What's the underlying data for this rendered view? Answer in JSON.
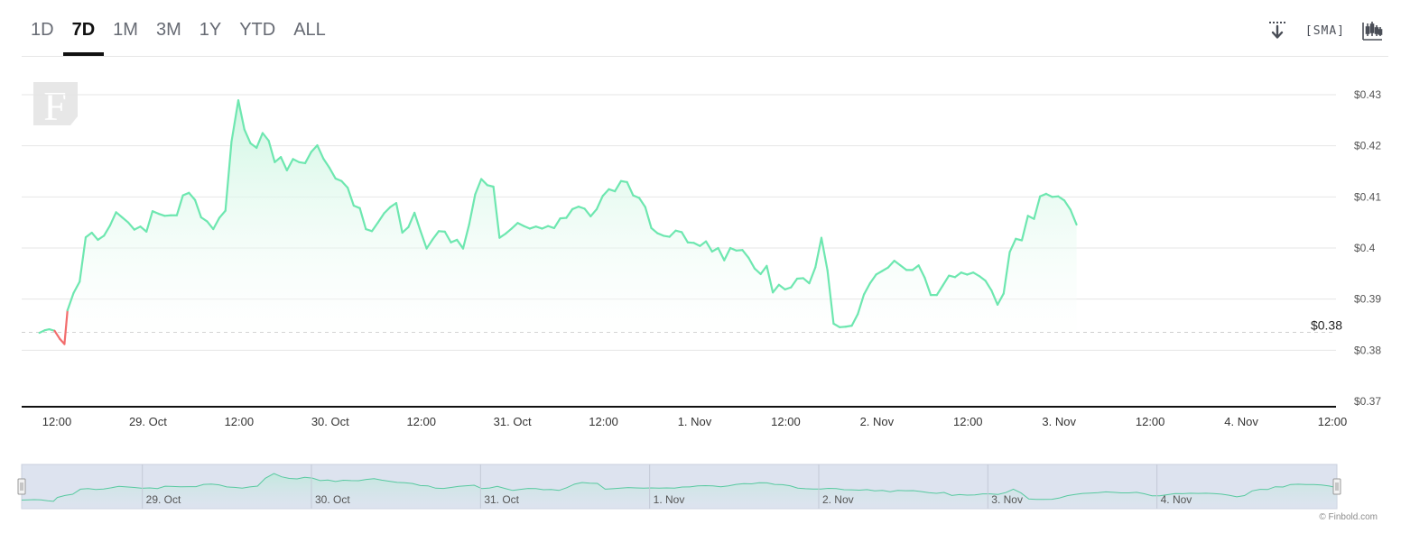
{
  "tabs": [
    {
      "label": "1D",
      "active": false
    },
    {
      "label": "7D",
      "active": true
    },
    {
      "label": "1M",
      "active": false
    },
    {
      "label": "3M",
      "active": false
    },
    {
      "label": "1Y",
      "active": false
    },
    {
      "label": "YTD",
      "active": false
    },
    {
      "label": "ALL",
      "active": false
    }
  ],
  "toolbar": {
    "download_icon": "download-icon",
    "sma_label": "SMA",
    "candlestick_icon": "candlestick-icon"
  },
  "logo": {
    "letter": "F"
  },
  "credit": "© Finbold.com",
  "colors": {
    "line": "#6ee7b0",
    "fill_top": "#c9f5df",
    "negative": "#f26d6d",
    "navigator_bg": "#dde3ef",
    "grid": "#e6e6e6"
  },
  "chart_data": {
    "type": "line",
    "title": "",
    "xlabel": "",
    "ylabel": "",
    "ylim": [
      0.37,
      0.43
    ],
    "y_ticks": [
      "$0.43",
      "$0.42",
      "$0.41",
      "$0.4",
      "$0.39",
      "$0.38",
      "$0.37"
    ],
    "y_tick_values": [
      0.43,
      0.42,
      0.41,
      0.4,
      0.39,
      0.38,
      0.37
    ],
    "xlim": [
      0,
      168
    ],
    "x_ticks": [
      {
        "label": "12:00",
        "t": 0
      },
      {
        "label": "29. Oct",
        "t": 12
      },
      {
        "label": "12:00",
        "t": 24
      },
      {
        "label": "30. Oct",
        "t": 36
      },
      {
        "label": "12:00",
        "t": 48
      },
      {
        "label": "31. Oct",
        "t": 60
      },
      {
        "label": "12:00",
        "t": 72
      },
      {
        "label": "1. Nov",
        "t": 84
      },
      {
        "label": "12:00",
        "t": 96
      },
      {
        "label": "2. Nov",
        "t": 108
      },
      {
        "label": "12:00",
        "t": 120
      },
      {
        "label": "3. Nov",
        "t": 132
      },
      {
        "label": "12:00",
        "t": 144
      },
      {
        "label": "4. Nov",
        "t": 156
      },
      {
        "label": "12:00",
        "t": 168
      }
    ],
    "reference_line": {
      "value": 0.3835,
      "label": "$0.38"
    },
    "navigator_labels": [
      {
        "label": "29. Oct",
        "t": 12
      },
      {
        "label": "30. Oct",
        "t": 36
      },
      {
        "label": "31. Oct",
        "t": 60
      },
      {
        "label": "1. Nov",
        "t": 84
      },
      {
        "label": "2. Nov",
        "t": 108
      },
      {
        "label": "3. Nov",
        "t": 132
      },
      {
        "label": "4. Nov",
        "t": 156
      }
    ],
    "series": [
      {
        "name": "",
        "points": [
          [
            -2.3,
            0.3834
          ],
          [
            -1.6,
            0.3839
          ],
          [
            -1.0,
            0.3841
          ],
          [
            -0.3,
            0.3838
          ],
          [
            0.4,
            0.3822
          ],
          [
            1.0,
            0.3812
          ],
          [
            1.4,
            0.3878
          ],
          [
            2.2,
            0.3912
          ],
          [
            3.0,
            0.3934
          ],
          [
            3.8,
            0.4021
          ],
          [
            4.6,
            0.403
          ],
          [
            5.4,
            0.4016
          ],
          [
            6.2,
            0.4024
          ],
          [
            7.0,
            0.4044
          ],
          [
            7.8,
            0.407
          ],
          [
            8.6,
            0.406
          ],
          [
            9.4,
            0.405
          ],
          [
            10.2,
            0.4036
          ],
          [
            11.0,
            0.4042
          ],
          [
            11.8,
            0.4032
          ],
          [
            12.6,
            0.4072
          ],
          [
            13.4,
            0.4067
          ],
          [
            14.2,
            0.4063
          ],
          [
            15.0,
            0.4064
          ],
          [
            15.8,
            0.4064
          ],
          [
            16.6,
            0.4103
          ],
          [
            17.4,
            0.4108
          ],
          [
            18.2,
            0.4094
          ],
          [
            19.0,
            0.406
          ],
          [
            19.8,
            0.4052
          ],
          [
            20.6,
            0.4037
          ],
          [
            21.4,
            0.4059
          ],
          [
            22.2,
            0.4073
          ],
          [
            23.0,
            0.4208
          ],
          [
            23.9,
            0.4289
          ],
          [
            24.7,
            0.4232
          ],
          [
            25.5,
            0.4205
          ],
          [
            26.3,
            0.4196
          ],
          [
            27.1,
            0.4225
          ],
          [
            27.9,
            0.421
          ],
          [
            28.7,
            0.4168
          ],
          [
            29.5,
            0.4178
          ],
          [
            30.3,
            0.4152
          ],
          [
            31.1,
            0.4174
          ],
          [
            31.9,
            0.4168
          ],
          [
            32.7,
            0.4166
          ],
          [
            33.5,
            0.4188
          ],
          [
            34.3,
            0.4201
          ],
          [
            35.1,
            0.4175
          ],
          [
            35.9,
            0.4157
          ],
          [
            36.7,
            0.4136
          ],
          [
            37.5,
            0.4131
          ],
          [
            38.3,
            0.4118
          ],
          [
            39.1,
            0.4083
          ],
          [
            39.9,
            0.4078
          ],
          [
            40.7,
            0.4037
          ],
          [
            41.5,
            0.4033
          ],
          [
            42.3,
            0.405
          ],
          [
            43.1,
            0.4068
          ],
          [
            43.9,
            0.408
          ],
          [
            44.7,
            0.4088
          ],
          [
            45.5,
            0.403
          ],
          [
            46.3,
            0.4041
          ],
          [
            47.1,
            0.4069
          ],
          [
            47.9,
            0.4033
          ],
          [
            48.7,
            0.3999
          ],
          [
            49.5,
            0.4017
          ],
          [
            50.3,
            0.4033
          ],
          [
            51.1,
            0.4032
          ],
          [
            51.9,
            0.4011
          ],
          [
            52.7,
            0.4016
          ],
          [
            53.5,
            0.3999
          ],
          [
            54.3,
            0.4046
          ],
          [
            55.1,
            0.4105
          ],
          [
            55.9,
            0.4135
          ],
          [
            56.7,
            0.4123
          ],
          [
            57.5,
            0.412
          ],
          [
            58.3,
            0.402
          ],
          [
            59.1,
            0.4028
          ],
          [
            59.9,
            0.4038
          ],
          [
            60.7,
            0.4049
          ],
          [
            61.5,
            0.4043
          ],
          [
            62.3,
            0.4038
          ],
          [
            63.1,
            0.4042
          ],
          [
            63.9,
            0.4038
          ],
          [
            64.7,
            0.4043
          ],
          [
            65.5,
            0.4039
          ],
          [
            66.3,
            0.4058
          ],
          [
            67.1,
            0.4059
          ],
          [
            67.9,
            0.4076
          ],
          [
            68.7,
            0.4081
          ],
          [
            69.5,
            0.4077
          ],
          [
            70.3,
            0.4062
          ],
          [
            71.1,
            0.4076
          ],
          [
            71.9,
            0.4102
          ],
          [
            72.7,
            0.4115
          ],
          [
            73.5,
            0.4111
          ],
          [
            74.3,
            0.4131
          ],
          [
            75.1,
            0.4129
          ],
          [
            75.9,
            0.4103
          ],
          [
            76.7,
            0.4098
          ],
          [
            77.5,
            0.408
          ],
          [
            78.3,
            0.4039
          ],
          [
            79.1,
            0.4029
          ],
          [
            79.9,
            0.4024
          ],
          [
            80.7,
            0.4022
          ],
          [
            81.5,
            0.4034
          ],
          [
            82.3,
            0.4031
          ],
          [
            83.1,
            0.4011
          ],
          [
            83.9,
            0.401
          ],
          [
            84.7,
            0.4004
          ],
          [
            85.5,
            0.4013
          ],
          [
            86.3,
            0.3993
          ],
          [
            87.1,
            0.4
          ],
          [
            87.9,
            0.3976
          ],
          [
            88.7,
            0.4
          ],
          [
            89.5,
            0.3995
          ],
          [
            90.3,
            0.3996
          ],
          [
            91.1,
            0.3981
          ],
          [
            91.9,
            0.396
          ],
          [
            92.7,
            0.3949
          ],
          [
            93.5,
            0.3965
          ],
          [
            94.3,
            0.3913
          ],
          [
            95.1,
            0.3928
          ],
          [
            95.9,
            0.3919
          ],
          [
            96.7,
            0.3923
          ],
          [
            97.5,
            0.394
          ],
          [
            98.3,
            0.3941
          ],
          [
            99.1,
            0.3931
          ],
          [
            99.9,
            0.3962
          ],
          [
            100.7,
            0.402
          ],
          [
            101.5,
            0.3956
          ],
          [
            102.3,
            0.3852
          ],
          [
            103.1,
            0.3845
          ],
          [
            103.9,
            0.3846
          ],
          [
            104.7,
            0.3848
          ],
          [
            105.5,
            0.3871
          ],
          [
            106.3,
            0.3909
          ],
          [
            107.1,
            0.3931
          ],
          [
            107.9,
            0.3948
          ],
          [
            108.7,
            0.3955
          ],
          [
            109.5,
            0.3962
          ],
          [
            110.3,
            0.3975
          ],
          [
            111.1,
            0.3966
          ],
          [
            111.9,
            0.3957
          ],
          [
            112.7,
            0.3957
          ],
          [
            113.5,
            0.3966
          ],
          [
            114.3,
            0.3942
          ],
          [
            115.1,
            0.3908
          ],
          [
            115.9,
            0.3908
          ],
          [
            116.7,
            0.3927
          ],
          [
            117.5,
            0.3946
          ],
          [
            118.3,
            0.3943
          ],
          [
            119.1,
            0.3952
          ],
          [
            119.9,
            0.3948
          ],
          [
            120.7,
            0.3952
          ],
          [
            121.5,
            0.3945
          ],
          [
            122.3,
            0.3936
          ],
          [
            123.1,
            0.3917
          ],
          [
            123.9,
            0.3889
          ],
          [
            124.7,
            0.3911
          ],
          [
            125.5,
            0.3992
          ],
          [
            126.3,
            0.4018
          ],
          [
            127.1,
            0.4015
          ],
          [
            127.9,
            0.4063
          ],
          [
            128.7,
            0.4057
          ],
          [
            129.5,
            0.4101
          ],
          [
            130.3,
            0.4106
          ],
          [
            131.1,
            0.41
          ],
          [
            131.9,
            0.4101
          ],
          [
            132.7,
            0.4093
          ],
          [
            133.5,
            0.4075
          ],
          [
            134.3,
            0.4046
          ]
        ]
      }
    ]
  }
}
